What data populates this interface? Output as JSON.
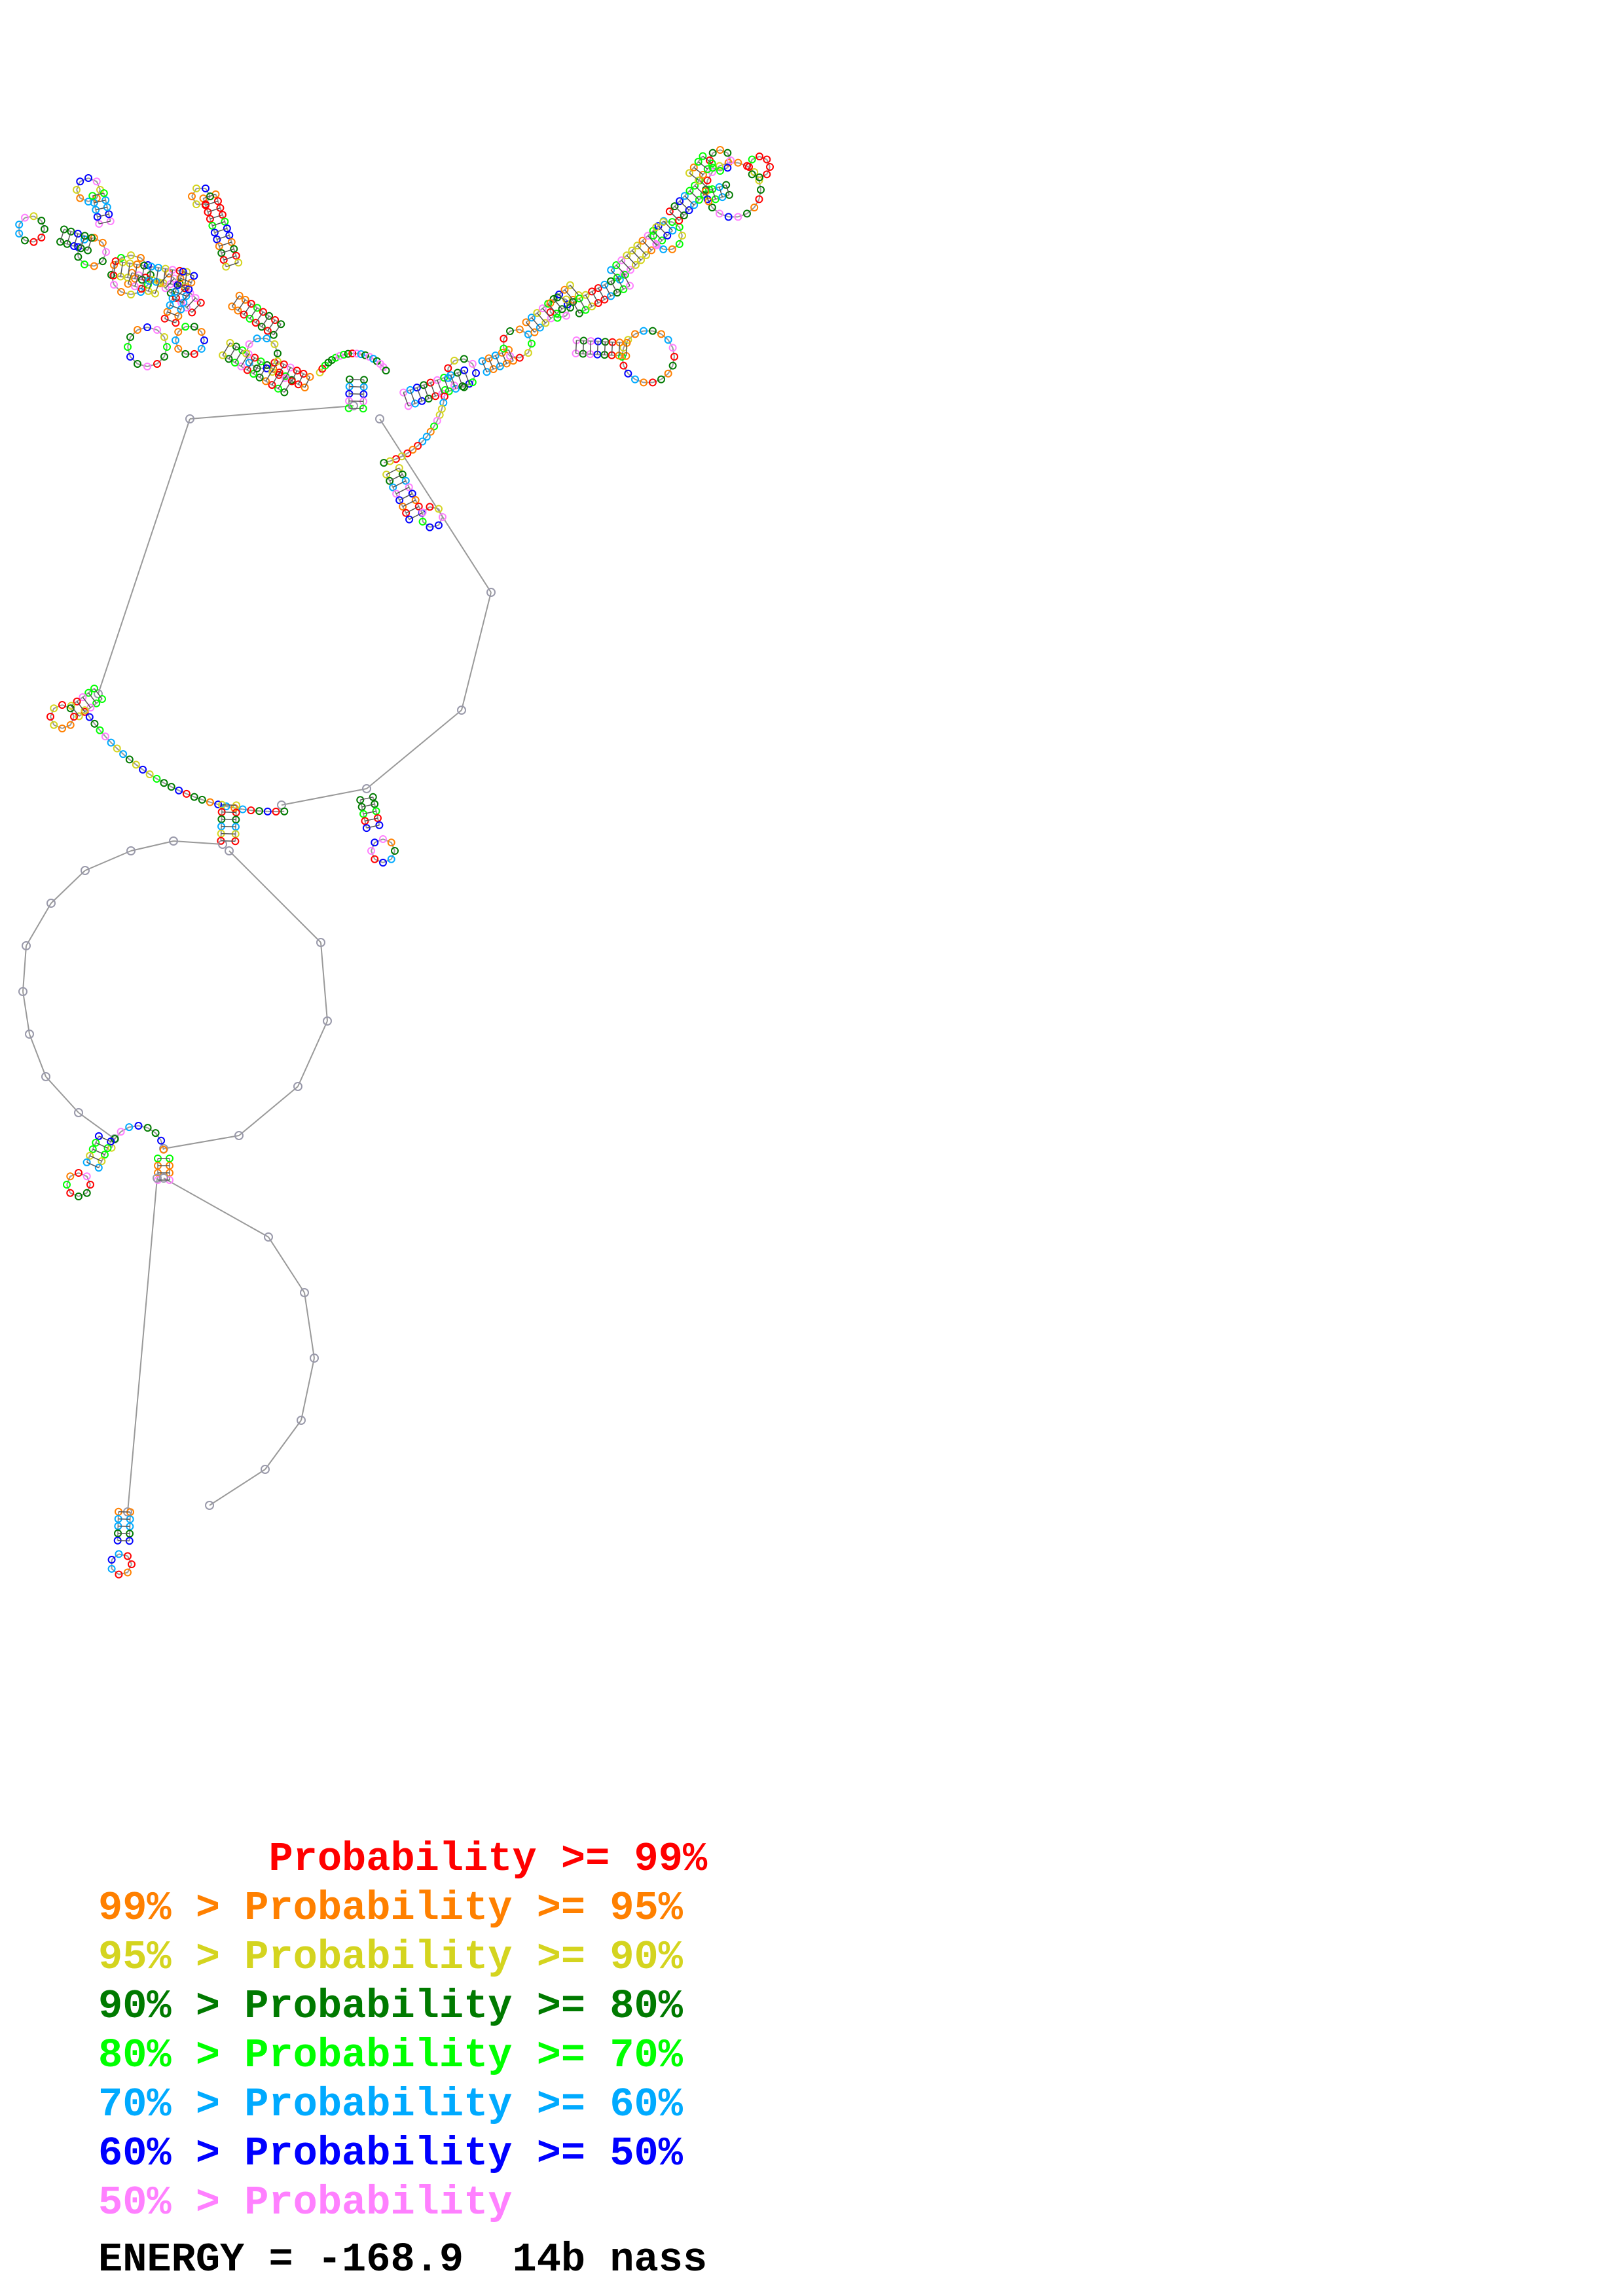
{
  "legend": [
    {
      "text": "       Probability >= 99%",
      "color": "#ff0000"
    },
    {
      "text": "99% > Probability >= 95%",
      "color": "#ff8000"
    },
    {
      "text": "95% > Probability >= 90%",
      "color": "#d4d41f"
    },
    {
      "text": "90% > Probability >= 80%",
      "color": "#007a00"
    },
    {
      "text": "80% > Probability >= 70%",
      "color": "#00ff00"
    },
    {
      "text": "70% > Probability >= 60%",
      "color": "#00aaff"
    },
    {
      "text": "60% > Probability >= 50%",
      "color": "#0000ff"
    },
    {
      "text": "50% > Probability",
      "color": "#ff80ff"
    }
  ],
  "energy": "ENERGY = -168.9  14b nass",
  "colors": {
    "backbone": "#888888",
    "p99": "#ff0000",
    "p95": "#ff8000",
    "p90": "#d4d41f",
    "p80": "#007a00",
    "p70": "#00ff00",
    "p60": "#00aaff",
    "p50": "#0000ff",
    "plow": "#ff80ff"
  }
}
